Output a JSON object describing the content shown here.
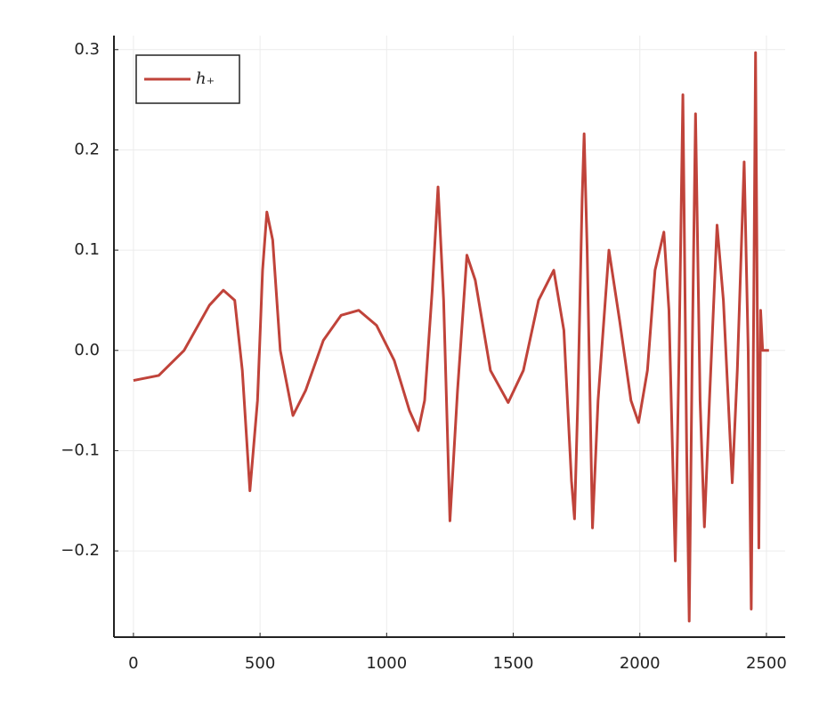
{
  "chart_data": {
    "type": "line",
    "x": [
      0,
      100,
      200,
      300,
      355,
      400,
      430,
      460,
      490,
      510,
      527,
      550,
      580,
      630,
      680,
      750,
      820,
      890,
      960,
      1030,
      1090,
      1125,
      1150,
      1180,
      1203,
      1225,
      1250,
      1280,
      1317,
      1350,
      1410,
      1480,
      1540,
      1600,
      1660,
      1700,
      1730,
      1742,
      1755,
      1772,
      1780,
      1792,
      1813,
      1835,
      1878,
      1920,
      1965,
      1995,
      2030,
      2060,
      2095,
      2115,
      2140,
      2155,
      2170,
      2185,
      2195,
      2207,
      2220,
      2238,
      2255,
      2275,
      2305,
      2330,
      2365,
      2385,
      2412,
      2428,
      2440,
      2450,
      2457,
      2465,
      2470,
      2477,
      2485,
      2510
    ],
    "series": [
      {
        "name": "h₊",
        "color": "#c0433a",
        "values": [
          -0.03,
          -0.025,
          0.0,
          0.045,
          0.06,
          0.05,
          -0.02,
          -0.14,
          -0.05,
          0.08,
          0.138,
          0.11,
          0.0,
          -0.065,
          -0.04,
          0.01,
          0.035,
          0.04,
          0.025,
          -0.01,
          -0.06,
          -0.08,
          -0.05,
          0.06,
          0.163,
          0.05,
          -0.17,
          -0.04,
          0.095,
          0.07,
          -0.02,
          -0.052,
          -0.02,
          0.05,
          0.08,
          0.02,
          -0.13,
          -0.168,
          -0.05,
          0.15,
          0.216,
          0.1,
          -0.177,
          -0.05,
          0.1,
          0.03,
          -0.05,
          -0.072,
          -0.02,
          0.08,
          0.118,
          0.04,
          -0.21,
          0.0,
          0.255,
          -0.1,
          -0.27,
          0.0,
          0.236,
          -0.05,
          -0.176,
          -0.05,
          0.125,
          0.05,
          -0.132,
          -0.02,
          0.188,
          0.0,
          -0.258,
          0.05,
          0.297,
          0.0,
          -0.197,
          0.04,
          0.0,
          0.0
        ]
      }
    ],
    "xlim": [
      -77,
      2574
    ],
    "ylim": [
      -0.286,
      0.314
    ],
    "xticks": [
      0,
      500,
      1000,
      1500,
      2000,
      2500
    ],
    "yticks": [
      {
        "value": -0.2,
        "label": "−0.2"
      },
      {
        "value": -0.1,
        "label": "−0.1"
      },
      {
        "value": 0,
        "label": "0.0"
      },
      0.1,
      0.2,
      0.3
    ],
    "grid": true,
    "legend": "top-left"
  }
}
